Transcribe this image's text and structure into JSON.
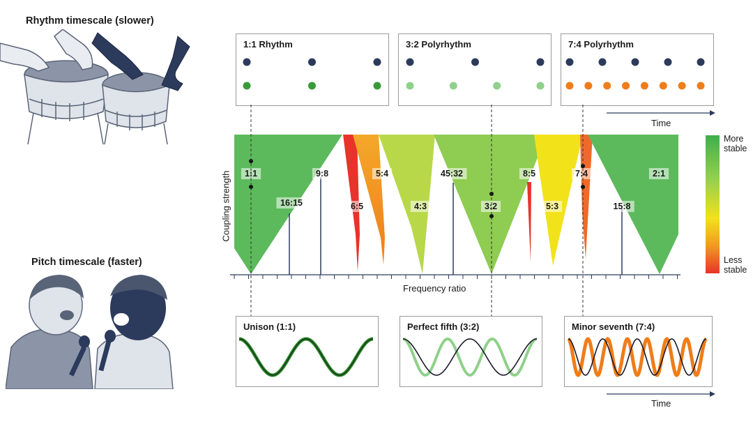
{
  "left": {
    "rhythm_heading": "Rhythm timescale (slower)",
    "pitch_heading": "Pitch timescale (faster)"
  },
  "top_panels": [
    {
      "title": "1:1 Rhythm"
    },
    {
      "title": "3:2 Polyrhythm"
    },
    {
      "title": "7:4 Polyrhythm"
    }
  ],
  "bottom_panels": [
    {
      "title": "Unison (1:1)"
    },
    {
      "title": "Perfect fifth (3:2)"
    },
    {
      "title": "Minor seventh (7:4)"
    }
  ],
  "time_label": "Time",
  "axes": {
    "y": "Coupling strength",
    "x": "Frequency ratio"
  },
  "legend": {
    "top": "More stable",
    "bottom": "Less stable"
  },
  "ratios": [
    "1:1",
    "16:15",
    "9:8",
    "6:5",
    "5:4",
    "4:3",
    "45:32",
    "3:2",
    "8:5",
    "5:3",
    "7:4",
    "15:8",
    "2:1"
  ],
  "colors": {
    "dark_navy": "#2c3a5c",
    "green_dark": "#3a9a3a",
    "green_light": "#8fd08a",
    "orange": "#ef7d1a",
    "tongue_green": "#5cba5c",
    "tongue_red": "#e8332a",
    "tongue_yellow": "#f2e21a"
  }
}
